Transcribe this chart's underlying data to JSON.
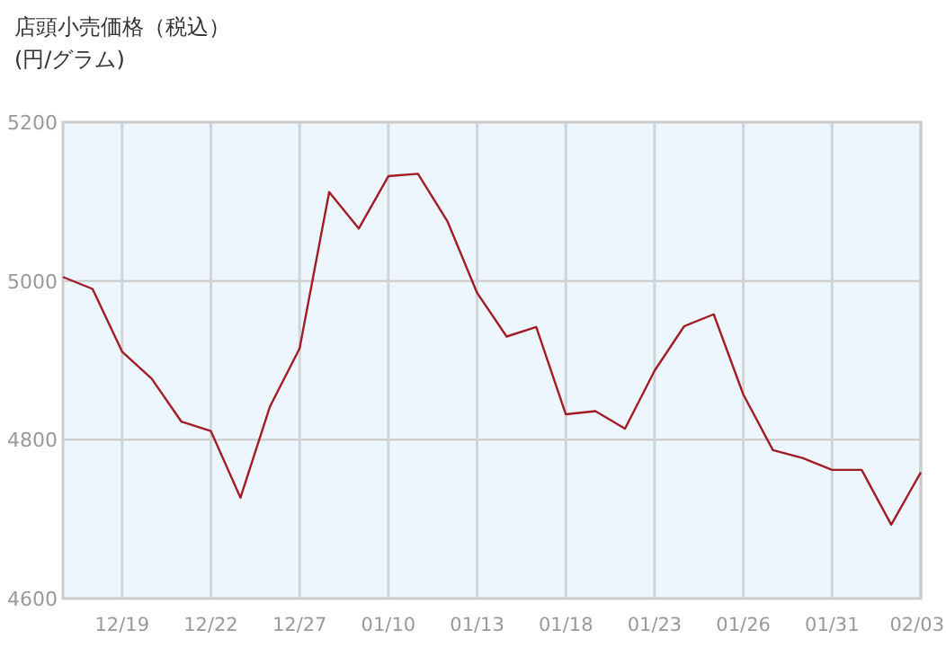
{
  "chart_data": {
    "type": "line",
    "title": "店頭小売価格（税込）",
    "subtitle": "(円/グラム)",
    "categories": [
      null,
      null,
      "12/19",
      null,
      null,
      "12/22",
      null,
      null,
      "12/27",
      null,
      null,
      "01/10",
      null,
      null,
      "01/13",
      null,
      null,
      "01/18",
      null,
      null,
      "01/23",
      null,
      null,
      "01/26",
      null,
      null,
      "01/31",
      null,
      null,
      "02/03"
    ],
    "series": [
      {
        "color": "#a01c26",
        "values": [
          5005,
          4990,
          4911,
          4877,
          4823,
          4811,
          4727,
          4842,
          4915,
          5112,
          5066,
          5132,
          5135,
          5075,
          4985,
          4930,
          4942,
          4832,
          4836,
          4814,
          4887,
          4943,
          4958,
          4857,
          4787,
          4777,
          4762,
          4762,
          4693,
          4759
        ]
      }
    ],
    "ylim": [
      4600,
      5200
    ],
    "yticks": [
      4600,
      4800,
      5000,
      5200
    ],
    "grid": true,
    "marker": "none",
    "line_style": "solid"
  }
}
